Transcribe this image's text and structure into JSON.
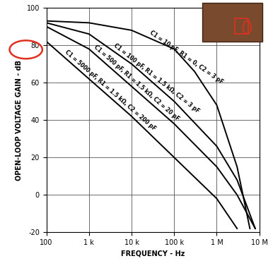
{
  "chart_data": {
    "type": "line",
    "x_label": "FREQUENCY - Hz",
    "y_label": "OPEN-LOOP VOLTAGE GAIN - dB",
    "log": "x",
    "grid": true,
    "xlim": [
      100,
      10000000
    ],
    "xticks": [
      100,
      {
        "value": 1000,
        "label": "1 k"
      },
      {
        "value": 10000,
        "label": "10 k"
      },
      {
        "value": 100000,
        "label": "100 k"
      },
      {
        "value": 1000000,
        "label": "1 M"
      },
      {
        "value": 10000000,
        "label": "10 M"
      }
    ],
    "ylim": [
      -20,
      100
    ],
    "yticks": [
      -20,
      0,
      20,
      40,
      60,
      80,
      100
    ],
    "series": [
      {
        "name": "C1 = 10 pF, R1 = 0, C2 = 3 pF",
        "color": "#000000",
        "x": [
          100,
          1000,
          10000,
          100000,
          300000,
          1000000,
          3000000,
          6000000
        ],
        "values": [
          93,
          92,
          88,
          78,
          66,
          48,
          15,
          -18
        ]
      },
      {
        "name": "C1 = 100 pF, R1 = 1.5 kΩ, C2 = 3 pF",
        "color": "#000000",
        "x": [
          100,
          1000,
          10000,
          100000,
          1000000,
          3000000,
          8000000
        ],
        "values": [
          92,
          86,
          70,
          50,
          26,
          8,
          -18
        ]
      },
      {
        "name": "C1 = 500 pF, R1 = 1.5 kΩ, C2 = 20 pF",
        "color": "#000000",
        "x": [
          100,
          1000,
          10000,
          100000,
          1000000,
          3000000,
          8000000
        ],
        "values": [
          90,
          78,
          58,
          38,
          15,
          0,
          -18
        ]
      },
      {
        "name": "C1 = 5000 pF, R1 = 1.5 kΩ, C2 = 200 pF",
        "color": "#000000",
        "x": [
          100,
          1000,
          10000,
          100000,
          1000000,
          3000000
        ],
        "values": [
          82,
          62,
          42,
          20,
          -2,
          -18
        ]
      }
    ]
  }
}
